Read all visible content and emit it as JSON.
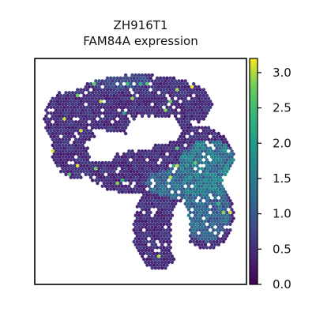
{
  "chart_data": {
    "type": "heatmap",
    "subtype": "spatial-scatter",
    "title_lines": [
      "ZH916T1",
      "FAM84A expression"
    ],
    "colormap": "viridis",
    "colorbar": {
      "range": [
        0,
        3.2
      ],
      "ticks": [
        0.0,
        0.5,
        1.0,
        1.5,
        2.0,
        2.5,
        3.0
      ],
      "tick_labels": [
        "0.0",
        "0.5",
        "1.0",
        "1.5",
        "2.0",
        "2.5",
        "3.0"
      ]
    },
    "xticks": [],
    "yticks": [],
    "grid": false
  }
}
